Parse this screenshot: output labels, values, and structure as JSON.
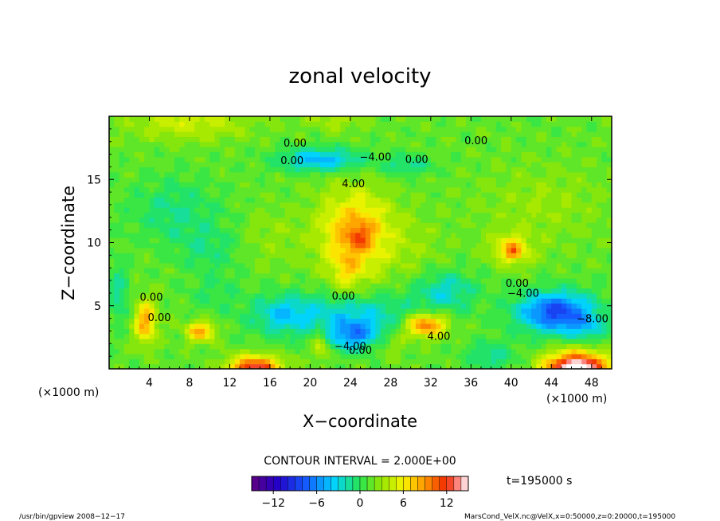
{
  "chart_data": {
    "type": "heatmap",
    "title": "zonal velocity",
    "xlabel": "X−coordinate",
    "ylabel": "Z−coordinate",
    "x_unit": "(×1000 m)",
    "y_unit": "(×1000 m)",
    "xlim": [
      0,
      50
    ],
    "ylim": [
      0,
      20
    ],
    "x_ticks": [
      "4",
      "8",
      "12",
      "16",
      "20",
      "24",
      "28",
      "32",
      "36",
      "40",
      "44",
      "48"
    ],
    "y_ticks": [
      "5",
      "10",
      "15"
    ],
    "contour_interval_text": "CONTOUR INTERVAL = 2.000E+00",
    "time_text": "t=195000 s",
    "colorbar": {
      "min": -15,
      "max": 15,
      "tick_labels": [
        "−12",
        "−6",
        "0",
        "6",
        "12"
      ],
      "tick_values": [
        -12,
        -6,
        0,
        6,
        12
      ]
    },
    "contour_labels": [
      {
        "text": "0.00",
        "x": 18.5,
        "z": 17.6
      },
      {
        "text": "0.00",
        "x": 18.2,
        "z": 16.2
      },
      {
        "text": "−4.00",
        "x": 26.5,
        "z": 16.5
      },
      {
        "text": "0.00",
        "x": 30.6,
        "z": 16.3
      },
      {
        "text": "0.00",
        "x": 36.5,
        "z": 17.8
      },
      {
        "text": "4.00",
        "x": 24.3,
        "z": 14.4
      },
      {
        "text": "0.00",
        "x": 4.2,
        "z": 5.4
      },
      {
        "text": "0.00",
        "x": 5.0,
        "z": 3.8
      },
      {
        "text": "0.00",
        "x": 23.3,
        "z": 5.5
      },
      {
        "text": "4.00",
        "x": 32.8,
        "z": 2.3
      },
      {
        "text": "−4.00",
        "x": 24.0,
        "z": 1.5
      },
      {
        "text": "0.00",
        "x": 25.0,
        "z": 1.2
      },
      {
        "text": "0.00",
        "x": 40.6,
        "z": 6.5
      },
      {
        "text": "−4.00",
        "x": 41.2,
        "z": 5.7
      },
      {
        "text": "−8.00",
        "x": 48.1,
        "z": 3.7
      }
    ],
    "features": [
      {
        "x": 24.5,
        "z": 10.8,
        "sx": 3.6,
        "sz": 3.2,
        "value": 7
      },
      {
        "x": 25.0,
        "z": 10.5,
        "sx": 1.2,
        "sz": 1.0,
        "value": 3
      },
      {
        "x": 23.7,
        "z": 7.5,
        "sx": 1.5,
        "sz": 1.6,
        "value": 3
      },
      {
        "x": 44.5,
        "z": 4.5,
        "sx": 3.8,
        "sz": 1.6,
        "value": -10
      },
      {
        "x": 47.5,
        "z": 3.2,
        "sx": 2.0,
        "sz": 1.0,
        "value": -3
      },
      {
        "x": 24.3,
        "z": 2.7,
        "sx": 2.8,
        "sz": 1.2,
        "value": -7
      },
      {
        "x": 25.0,
        "z": 4.5,
        "sx": 5.5,
        "sz": 1.6,
        "value": -4
      },
      {
        "x": 17.5,
        "z": 4.3,
        "sx": 3.5,
        "sz": 1.6,
        "value": -5
      },
      {
        "x": 33.5,
        "z": 6.2,
        "sx": 3.0,
        "sz": 1.6,
        "value": -4
      },
      {
        "x": 31.5,
        "z": 3.5,
        "sx": 2.0,
        "sz": 0.9,
        "value": 9
      },
      {
        "x": 3.6,
        "z": 3.8,
        "sx": 1.1,
        "sz": 1.6,
        "value": 7
      },
      {
        "x": 9.1,
        "z": 3.0,
        "sx": 1.4,
        "sz": 0.8,
        "value": 7
      },
      {
        "x": 14.5,
        "z": 0.0,
        "sx": 2.5,
        "sz": 1.0,
        "value": 12
      },
      {
        "x": 46.5,
        "z": 0.0,
        "sx": 3.0,
        "sz": 1.3,
        "value": 16
      },
      {
        "x": 40.0,
        "z": 9.5,
        "sx": 2.0,
        "sz": 1.2,
        "value": 5
      },
      {
        "x": 40.2,
        "z": 9.3,
        "sx": 0.8,
        "sz": 0.6,
        "value": 4
      },
      {
        "x": 21.0,
        "z": 2.0,
        "sx": 0.8,
        "sz": 1.2,
        "value": 4
      },
      {
        "x": 21.0,
        "z": 16.6,
        "sx": 4.0,
        "sz": 0.9,
        "value": -6
      },
      {
        "x": 29.5,
        "z": 16.2,
        "sx": 2.5,
        "sz": 0.8,
        "value": -3
      },
      {
        "x": 8.0,
        "z": 19.5,
        "sx": 6.0,
        "sz": 1.4,
        "value": 3
      },
      {
        "x": 22.5,
        "z": 19.8,
        "sx": 3.0,
        "sz": 0.9,
        "value": 2
      },
      {
        "x": 6.5,
        "z": 12.5,
        "sx": 4.5,
        "sz": 2.5,
        "value": -2.5
      },
      {
        "x": 10.0,
        "z": 9.5,
        "sx": 3.0,
        "sz": 2.0,
        "value": -2
      },
      {
        "x": 16.0,
        "z": 10.5,
        "sx": 3.0,
        "sz": 2.5,
        "value": 1.2
      },
      {
        "x": 30.5,
        "z": 9.5,
        "sx": 3.0,
        "sz": 2.5,
        "value": 1.2
      },
      {
        "x": 43.0,
        "z": 13.0,
        "sx": 6.0,
        "sz": 3.0,
        "value": 1.5
      },
      {
        "x": 1.0,
        "z": 6.0,
        "sx": 1.0,
        "sz": 2.5,
        "value": -3
      },
      {
        "x": 10.5,
        "z": 6.0,
        "sx": 2.5,
        "sz": 1.5,
        "value": -1.5
      },
      {
        "x": 38.0,
        "z": 1.0,
        "sx": 2.5,
        "sz": 1.2,
        "value": -3
      },
      {
        "x": 28.0,
        "z": 2.0,
        "sx": 1.5,
        "sz": 1.0,
        "value": 2
      }
    ]
  },
  "footer": {
    "left": "/usr/bin/gpview   2008−12−17",
    "right": "MarsCond_VelX.nc@VelX,x=0:50000,z=0:20000,t=195000"
  }
}
